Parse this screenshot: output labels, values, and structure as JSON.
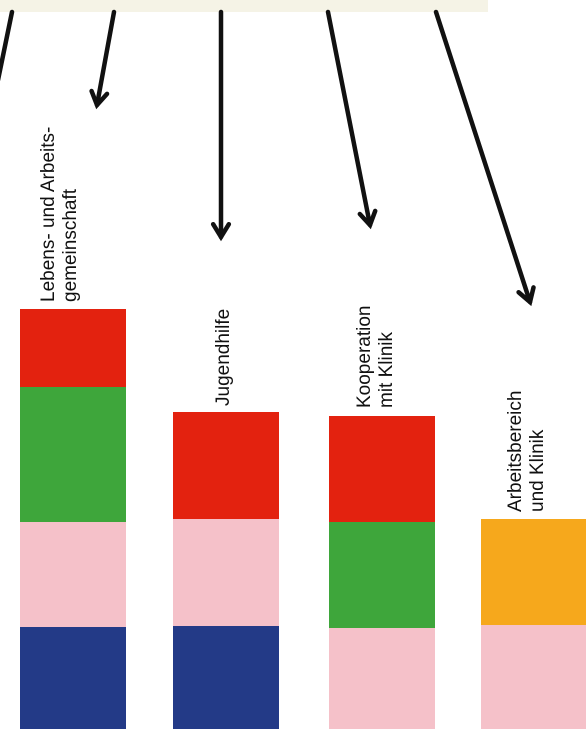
{
  "colors": {
    "red": "#e3220f",
    "green": "#3ea63b",
    "pink": "#f5c1c9",
    "blue": "#233a87",
    "orange": "#f6a81c",
    "arrow": "#111111"
  },
  "columns": [
    {
      "id": "lebens-arbeitsgemeinschaft",
      "label_lines": [
        "Lebens- und Arbeits-",
        "gemeinschaft"
      ],
      "blocks": [
        "red",
        "green",
        "pink",
        "blue"
      ]
    },
    {
      "id": "jugendhilfe",
      "label_lines": [
        "Jugendhilfe"
      ],
      "blocks": [
        "red",
        "pink",
        "blue"
      ]
    },
    {
      "id": "kooperation-mit-klinik",
      "label_lines": [
        "Kooperation",
        "mit Klinik"
      ],
      "blocks": [
        "red",
        "green",
        "pink"
      ]
    },
    {
      "id": "arbeitsbereich-und-klinik",
      "label_lines": [
        "Arbeitsbereich",
        "und Klinik"
      ],
      "blocks": [
        "orange",
        "pink"
      ]
    }
  ]
}
